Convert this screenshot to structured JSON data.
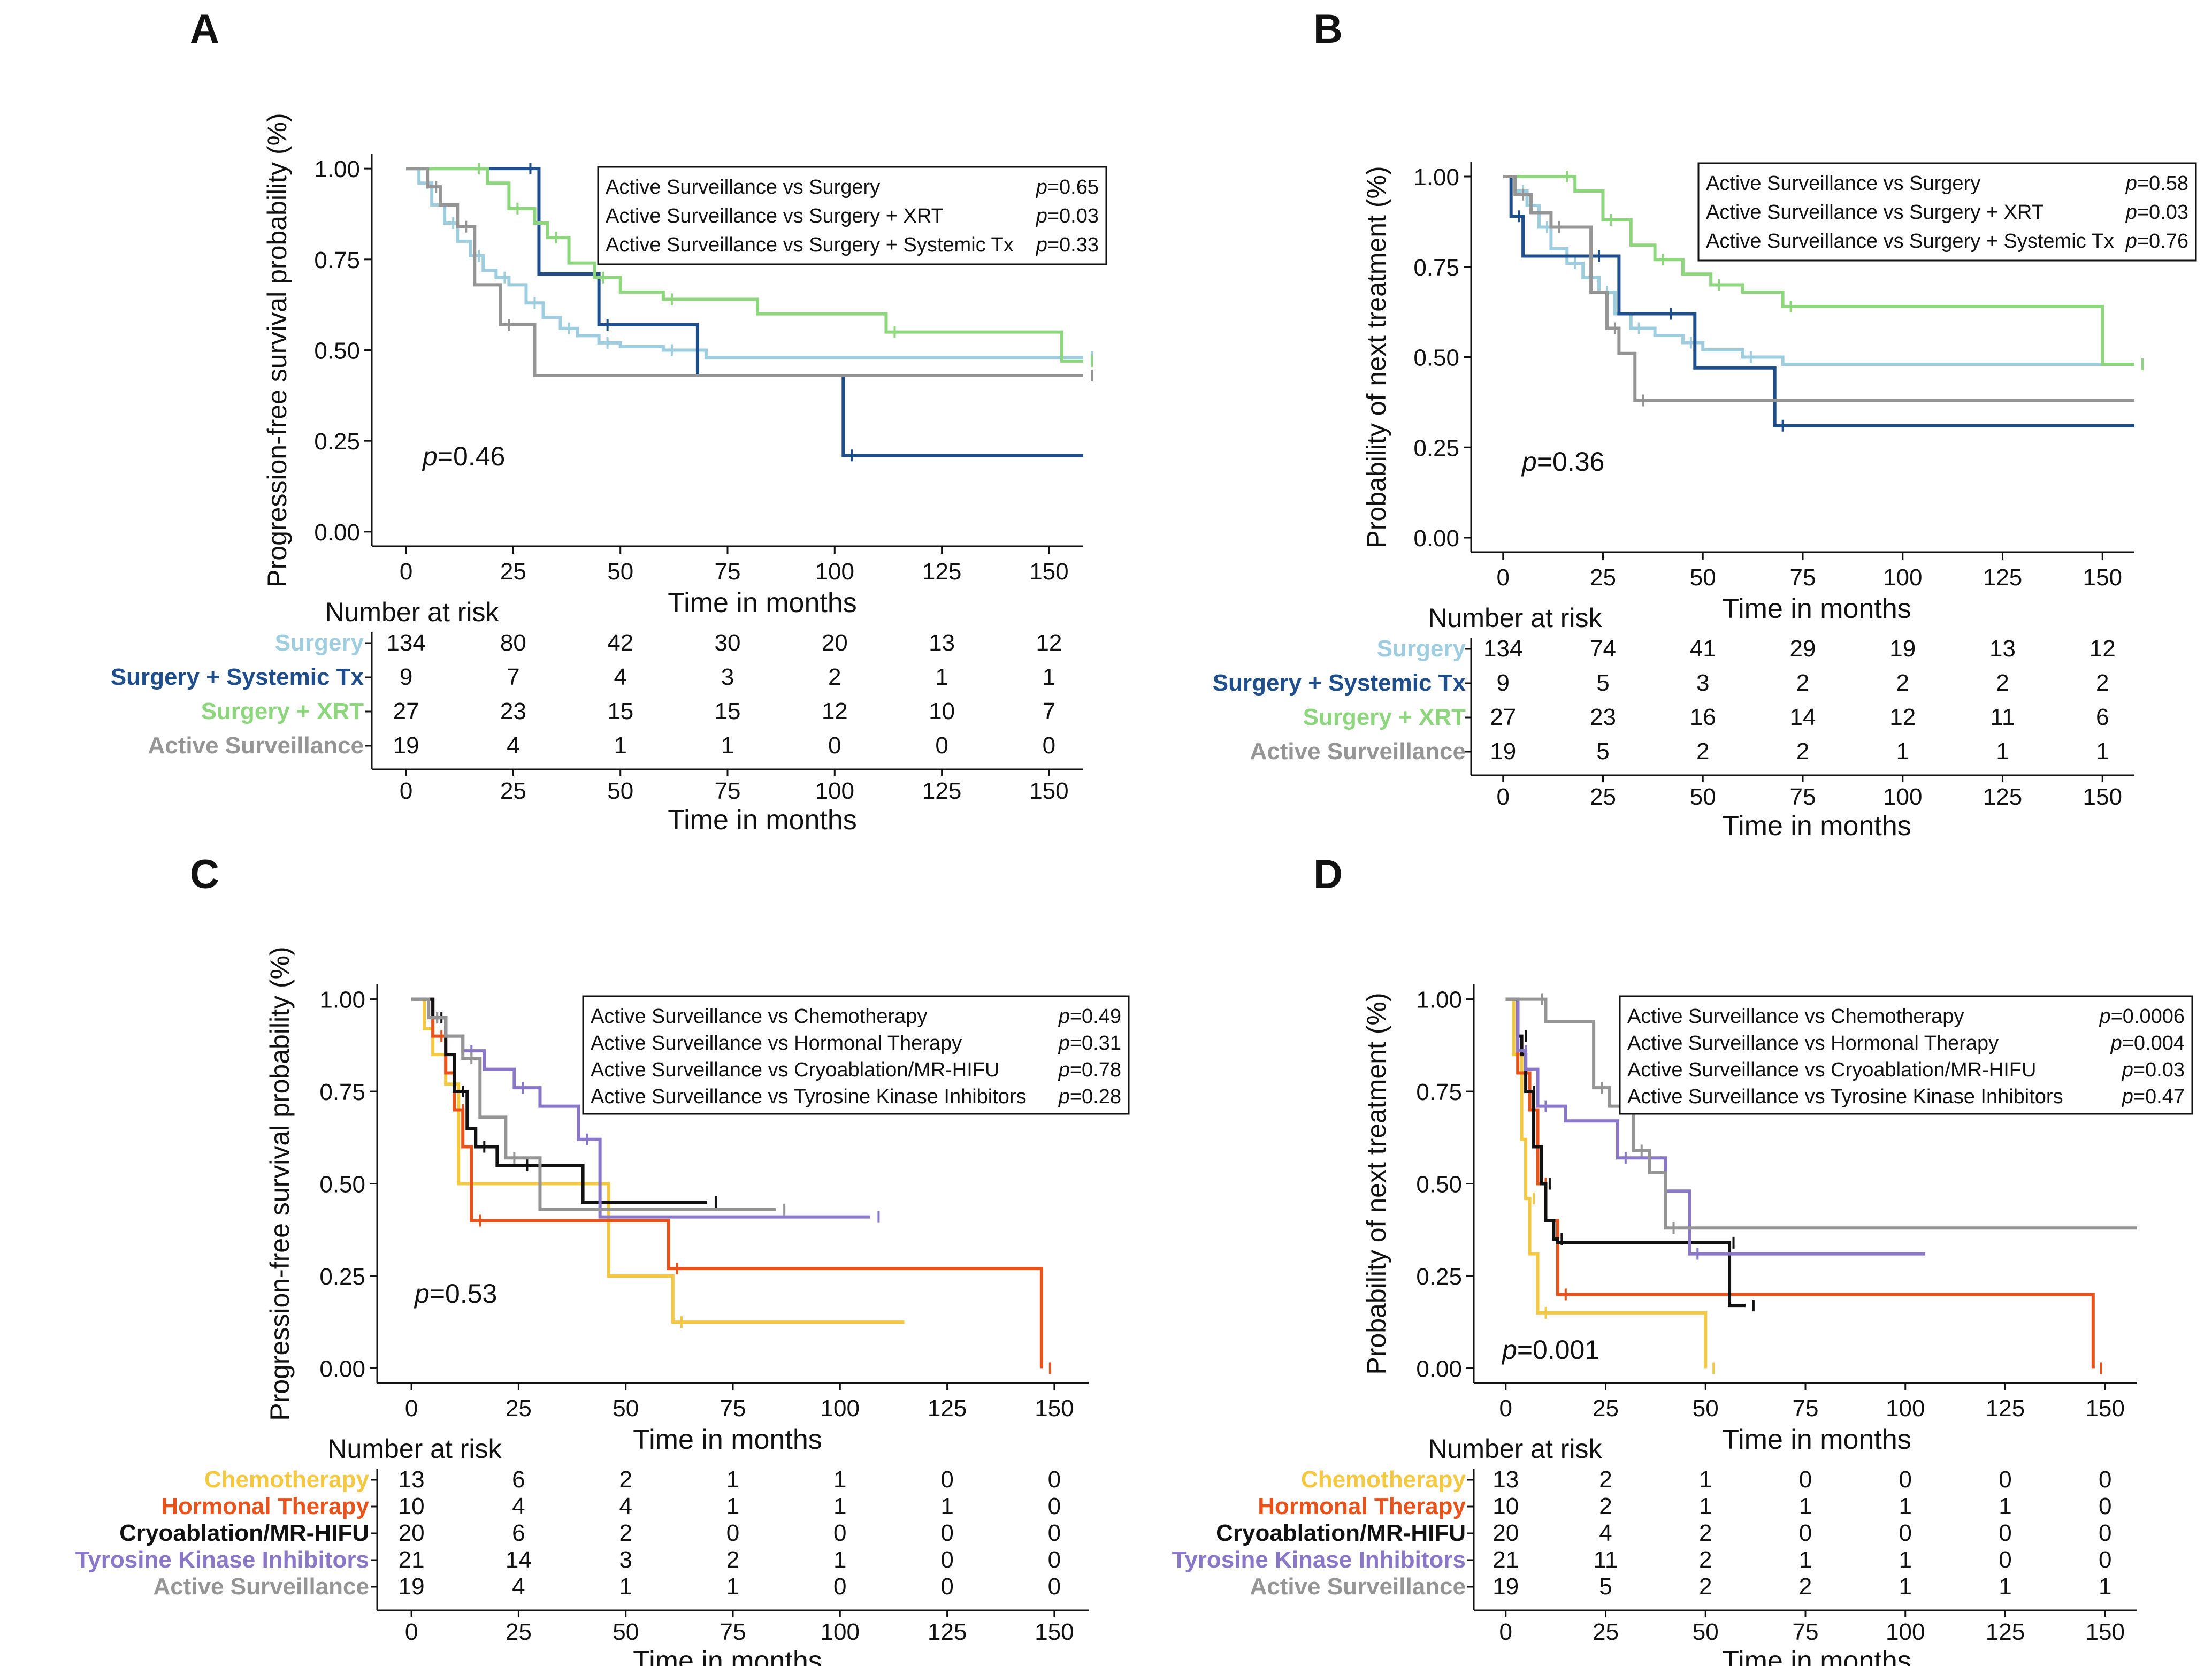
{
  "chart_data": [
    {
      "type": "line",
      "panel": "A",
      "ylabel": "Progression-free survival probability (%)",
      "xlabel": "Time in months",
      "xlim": [
        -8,
        158
      ],
      "ylim": [
        -0.04,
        1.04
      ],
      "xticks": [
        "0",
        "25",
        "50",
        "75",
        "100",
        "125",
        "150"
      ],
      "yticks": [
        "0.00",
        "0.25",
        "0.50",
        "0.75",
        "1.00"
      ],
      "overall_p": "0.46",
      "comparisons": [
        {
          "label": "Active Surveillance vs Surgery",
          "p": "0.65"
        },
        {
          "label": "Active Surveillance vs Surgery + XRT",
          "p": "0.03"
        },
        {
          "label": "Active Surveillance vs Surgery + Systemic Tx",
          "p": "0.33"
        }
      ],
      "series": [
        {
          "name": "Surgery",
          "color": "#9fcde0",
          "x": [
            0,
            3,
            6,
            9,
            12,
            15,
            18,
            21,
            24,
            28,
            32,
            36,
            40,
            45,
            50,
            60,
            70,
            158
          ],
          "y": [
            1.0,
            0.96,
            0.9,
            0.85,
            0.8,
            0.76,
            0.72,
            0.7,
            0.68,
            0.63,
            0.59,
            0.56,
            0.54,
            0.52,
            0.51,
            0.5,
            0.48,
            0.48
          ]
        },
        {
          "name": "Surgery + Systemic Tx",
          "color": "#1f4e8c",
          "x": [
            0,
            27,
            31,
            45,
            68,
            102,
            158
          ],
          "y": [
            1.0,
            1.0,
            0.71,
            0.57,
            0.43,
            0.21,
            0.21
          ]
        },
        {
          "name": "Surgery + XRT",
          "color": "#8ed67e",
          "x": [
            0,
            15,
            19,
            24,
            30,
            33,
            38,
            44,
            50,
            60,
            82,
            112,
            153,
            158
          ],
          "y": [
            1.0,
            1.0,
            0.96,
            0.89,
            0.85,
            0.81,
            0.74,
            0.7,
            0.66,
            0.64,
            0.6,
            0.55,
            0.47,
            0.47
          ]
        },
        {
          "name": "Active Surveillance",
          "color": "#959595",
          "x": [
            0,
            5,
            8,
            12,
            16,
            22,
            30,
            158
          ],
          "y": [
            1.0,
            0.95,
            0.9,
            0.84,
            0.68,
            0.57,
            0.43,
            0.43
          ]
        }
      ],
      "risk_table": {
        "title": "Number at risk",
        "rows": [
          {
            "label": "Surgery",
            "color": "#9fcde0",
            "values": [
              "134",
              "80",
              "42",
              "30",
              "20",
              "13",
              "12"
            ]
          },
          {
            "label": "Surgery + Systemic Tx",
            "color": "#1f4e8c",
            "values": [
              "9",
              "7",
              "4",
              "3",
              "2",
              "1",
              "1"
            ]
          },
          {
            "label": "Surgery + XRT",
            "color": "#8ed67e",
            "values": [
              "27",
              "23",
              "15",
              "15",
              "12",
              "10",
              "7"
            ]
          },
          {
            "label": "Active Surveillance",
            "color": "#959595",
            "values": [
              "19",
              "4",
              "1",
              "1",
              "0",
              "0",
              "0"
            ]
          }
        ]
      }
    },
    {
      "type": "line",
      "panel": "B",
      "ylabel": "Probability of next treatment (%)",
      "xlabel": "Time in months",
      "xlim": [
        -8,
        158
      ],
      "ylim": [
        -0.04,
        1.04
      ],
      "xticks": [
        "0",
        "25",
        "50",
        "75",
        "100",
        "125",
        "150"
      ],
      "yticks": [
        "0.00",
        "0.25",
        "0.50",
        "0.75",
        "1.00"
      ],
      "overall_p": "0.36",
      "comparisons": [
        {
          "label": "Active Surveillance vs Surgery",
          "p": "0.58"
        },
        {
          "label": "Active Surveillance vs Surgery + XRT",
          "p": "0.03"
        },
        {
          "label": "Active Surveillance vs Surgery + Systemic Tx",
          "p": "0.76"
        }
      ],
      "series": [
        {
          "name": "Surgery",
          "color": "#9fcde0",
          "x": [
            0,
            3,
            6,
            9,
            12,
            16,
            20,
            24,
            28,
            32,
            38,
            45,
            50,
            60,
            70,
            158
          ],
          "y": [
            1.0,
            0.96,
            0.92,
            0.86,
            0.8,
            0.76,
            0.72,
            0.68,
            0.62,
            0.58,
            0.56,
            0.54,
            0.52,
            0.5,
            0.48,
            0.48
          ]
        },
        {
          "name": "Surgery + Systemic Tx",
          "color": "#1f4e8c",
          "x": [
            0,
            2,
            5,
            22,
            29,
            40,
            48,
            68,
            158
          ],
          "y": [
            1.0,
            0.89,
            0.78,
            0.78,
            0.62,
            0.62,
            0.47,
            0.31,
            0.31
          ]
        },
        {
          "name": "Surgery + XRT",
          "color": "#8ed67e",
          "x": [
            0,
            14,
            18,
            25,
            32,
            38,
            45,
            52,
            60,
            70,
            150,
            158
          ],
          "y": [
            1.0,
            1.0,
            0.96,
            0.88,
            0.81,
            0.77,
            0.73,
            0.7,
            0.68,
            0.64,
            0.48,
            0.48
          ]
        },
        {
          "name": "Active Surveillance",
          "color": "#959595",
          "x": [
            0,
            3,
            7,
            12,
            22,
            26,
            29,
            33,
            158
          ],
          "y": [
            1.0,
            0.95,
            0.9,
            0.86,
            0.68,
            0.58,
            0.51,
            0.38,
            0.38
          ]
        }
      ],
      "risk_table": {
        "title": "Number at risk",
        "rows": [
          {
            "label": "Surgery",
            "color": "#9fcde0",
            "values": [
              "134",
              "74",
              "41",
              "29",
              "19",
              "13",
              "12"
            ]
          },
          {
            "label": "Surgery + Systemic Tx",
            "color": "#1f4e8c",
            "values": [
              "9",
              "5",
              "3",
              "2",
              "2",
              "2",
              "2"
            ]
          },
          {
            "label": "Surgery + XRT",
            "color": "#8ed67e",
            "values": [
              "27",
              "23",
              "16",
              "14",
              "12",
              "11",
              "6"
            ]
          },
          {
            "label": "Active Surveillance",
            "color": "#959595",
            "values": [
              "19",
              "5",
              "2",
              "2",
              "1",
              "1",
              "1"
            ]
          }
        ]
      }
    },
    {
      "type": "line",
      "panel": "C",
      "ylabel": "Progression-free survival probability (%)",
      "xlabel": "Time in months",
      "xlim": [
        -8,
        158
      ],
      "ylim": [
        -0.04,
        1.04
      ],
      "xticks": [
        "0",
        "25",
        "50",
        "75",
        "100",
        "125",
        "150"
      ],
      "yticks": [
        "0.00",
        "0.25",
        "0.50",
        "0.75",
        "1.00"
      ],
      "overall_p": "0.53",
      "comparisons": [
        {
          "label": "Active Surveillance vs Chemotherapy",
          "p": "0.49"
        },
        {
          "label": "Active Surveillance vs Hormonal Therapy",
          "p": "0.31"
        },
        {
          "label": "Active Surveillance vs Cryoablation/MR-HIFU",
          "p": "0.78"
        },
        {
          "label": "Active Surveillance vs Tyrosine Kinase Inhibitors",
          "p": "0.28"
        }
      ],
      "series": [
        {
          "name": "Chemotherapy",
          "color": "#f5c842",
          "x": [
            0,
            3,
            5,
            8,
            11,
            38,
            46,
            61,
            115
          ],
          "y": [
            1.0,
            0.92,
            0.85,
            0.77,
            0.5,
            0.5,
            0.25,
            0.125,
            0.125
          ]
        },
        {
          "name": "Hormonal Therapy",
          "color": "#e8531c",
          "x": [
            0,
            5,
            8,
            10,
            12,
            14,
            37,
            60,
            147,
            147
          ],
          "y": [
            1.0,
            0.9,
            0.8,
            0.7,
            0.6,
            0.4,
            0.4,
            0.27,
            0.27,
            0.0
          ]
        },
        {
          "name": "Cryoablation/MR-HIFU",
          "color": "#111111",
          "x": [
            0,
            5,
            8,
            10,
            13,
            15,
            20,
            25,
            40,
            69
          ],
          "y": [
            1.0,
            0.95,
            0.85,
            0.75,
            0.65,
            0.6,
            0.55,
            0.55,
            0.45,
            0.45
          ]
        },
        {
          "name": "Tyrosine Kinase Inhibitors",
          "color": "#8a77c8",
          "x": [
            0,
            4,
            8,
            12,
            17,
            24,
            30,
            39,
            44,
            107
          ],
          "y": [
            1.0,
            0.95,
            0.9,
            0.86,
            0.81,
            0.76,
            0.71,
            0.62,
            0.41,
            0.41
          ]
        },
        {
          "name": "Active Surveillance",
          "color": "#959595",
          "x": [
            0,
            4,
            8,
            12,
            16,
            22,
            30,
            85
          ],
          "y": [
            1.0,
            0.95,
            0.9,
            0.84,
            0.68,
            0.57,
            0.43,
            0.43
          ]
        }
      ],
      "risk_table": {
        "title": "Number at risk",
        "rows": [
          {
            "label": "Chemotherapy",
            "color": "#f5c842",
            "values": [
              "13",
              "6",
              "2",
              "1",
              "1",
              "0",
              "0"
            ]
          },
          {
            "label": "Hormonal Therapy",
            "color": "#e8531c",
            "values": [
              "10",
              "4",
              "4",
              "1",
              "1",
              "1",
              "0"
            ]
          },
          {
            "label": "Cryoablation/MR-HIFU",
            "color": "#111111",
            "values": [
              "20",
              "6",
              "2",
              "0",
              "0",
              "0",
              "0"
            ]
          },
          {
            "label": "Tyrosine Kinase Inhibitors",
            "color": "#8a77c8",
            "values": [
              "21",
              "14",
              "3",
              "2",
              "1",
              "0",
              "0"
            ]
          },
          {
            "label": "Active Surveillance",
            "color": "#959595",
            "values": [
              "19",
              "4",
              "1",
              "1",
              "0",
              "0",
              "0"
            ]
          }
        ]
      }
    },
    {
      "type": "line",
      "panel": "D",
      "ylabel": "Probability of next treatment (%)",
      "xlabel": "Time in months",
      "xlim": [
        -8,
        158
      ],
      "ylim": [
        -0.04,
        1.04
      ],
      "xticks": [
        "0",
        "25",
        "50",
        "75",
        "100",
        "125",
        "150"
      ],
      "yticks": [
        "0.00",
        "0.25",
        "0.50",
        "0.75",
        "1.00"
      ],
      "overall_p": "0.001",
      "comparisons": [
        {
          "label": "Active Surveillance vs Chemotherapy",
          "p": "0.0006"
        },
        {
          "label": "Active Surveillance vs Hormonal Therapy",
          "p": "0.004"
        },
        {
          "label": "Active Surveillance vs Cryoablation/MR-HIFU",
          "p": "0.03"
        },
        {
          "label": "Active Surveillance vs Tyrosine Kinase Inhibitors",
          "p": "0.47"
        }
      ],
      "series": [
        {
          "name": "Chemotherapy",
          "color": "#f5c842",
          "x": [
            0,
            2,
            4,
            5,
            6,
            8,
            50,
            50
          ],
          "y": [
            1.0,
            0.85,
            0.62,
            0.46,
            0.31,
            0.15,
            0.15,
            0.0
          ]
        },
        {
          "name": "Hormonal Therapy",
          "color": "#e8531c",
          "x": [
            0,
            3,
            6,
            8,
            10,
            13,
            147,
            147
          ],
          "y": [
            1.0,
            0.8,
            0.7,
            0.5,
            0.4,
            0.2,
            0.2,
            0.0
          ]
        },
        {
          "name": "Cryoablation/MR-HIFU",
          "color": "#111111",
          "x": [
            0,
            3,
            4,
            5,
            7,
            9,
            10,
            12,
            13,
            55,
            56,
            60
          ],
          "y": [
            1.0,
            0.9,
            0.85,
            0.75,
            0.6,
            0.5,
            0.4,
            0.35,
            0.34,
            0.34,
            0.17,
            0.17
          ]
        },
        {
          "name": "Tyrosine Kinase Inhibitors",
          "color": "#8a77c8",
          "x": [
            0,
            3,
            5,
            8,
            15,
            28,
            40,
            46,
            105
          ],
          "y": [
            1.0,
            0.86,
            0.81,
            0.71,
            0.67,
            0.57,
            0.48,
            0.31,
            0.31
          ]
        },
        {
          "name": "Active Surveillance",
          "color": "#959595",
          "x": [
            0,
            7,
            10,
            22,
            26,
            32,
            36,
            40,
            158
          ],
          "y": [
            1.0,
            1.0,
            0.94,
            0.76,
            0.71,
            0.59,
            0.53,
            0.38,
            0.38
          ]
        }
      ],
      "risk_table": {
        "title": "Number at risk",
        "rows": [
          {
            "label": "Chemotherapy",
            "color": "#f5c842",
            "values": [
              "13",
              "2",
              "1",
              "0",
              "0",
              "0",
              "0"
            ]
          },
          {
            "label": "Hormonal Therapy",
            "color": "#e8531c",
            "values": [
              "10",
              "2",
              "1",
              "1",
              "1",
              "1",
              "0"
            ]
          },
          {
            "label": "Cryoablation/MR-HIFU",
            "color": "#111111",
            "values": [
              "20",
              "4",
              "2",
              "0",
              "0",
              "0",
              "0"
            ]
          },
          {
            "label": "Tyrosine Kinase Inhibitors",
            "color": "#8a77c8",
            "values": [
              "21",
              "11",
              "2",
              "1",
              "1",
              "0",
              "0"
            ]
          },
          {
            "label": "Active Surveillance",
            "color": "#959595",
            "values": [
              "19",
              "5",
              "2",
              "2",
              "1",
              "1",
              "1"
            ]
          }
        ]
      }
    }
  ]
}
